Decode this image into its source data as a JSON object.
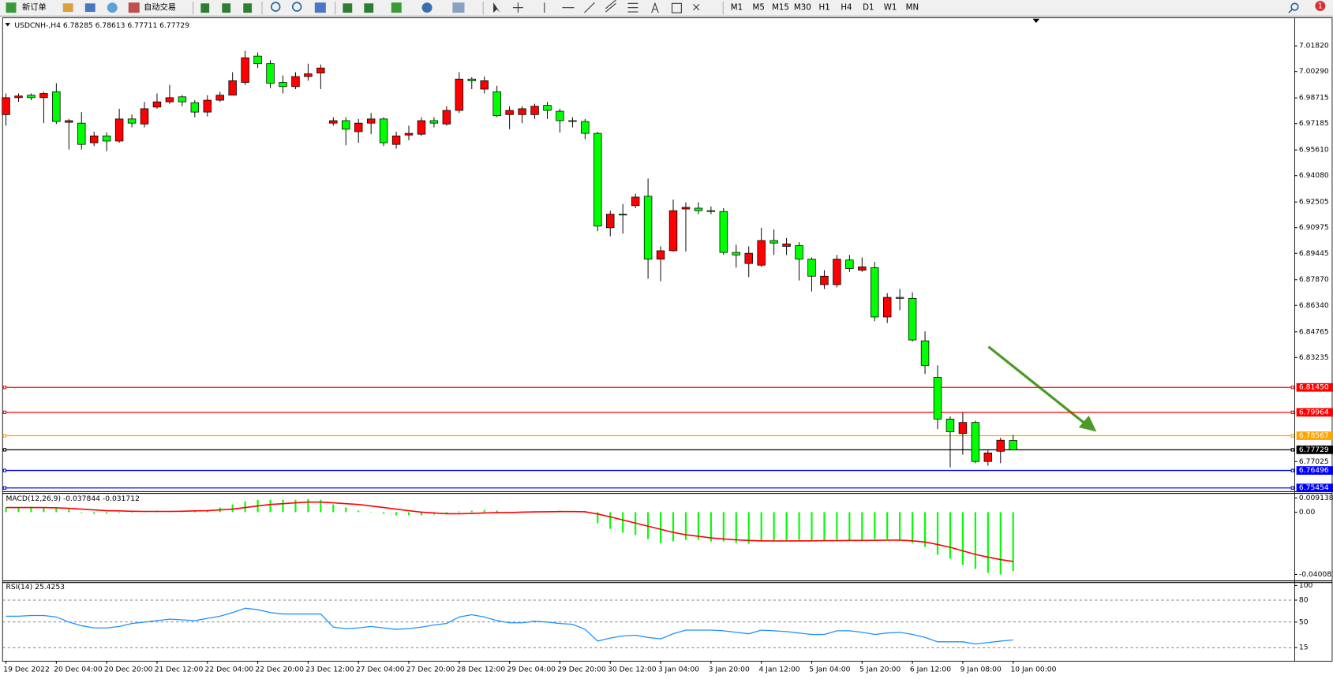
{
  "toolbar": {
    "new_order": "新订单",
    "auto_trading": "自动交易",
    "timeframes": [
      "M1",
      "M5",
      "M15",
      "M30",
      "H1",
      "H4",
      "D1",
      "W1",
      "MN"
    ],
    "alert_count": "1"
  },
  "chart_data": [
    {
      "type": "candlestick",
      "title": "USDCNH-,H4  6.78285 6.78613 6.77711 6.77729",
      "categories": [
        "19 Dec 2022",
        null,
        null,
        null,
        "20 Dec 04:00",
        null,
        null,
        null,
        "20 Dec 20:00",
        null,
        null,
        null,
        "21 Dec 12:00",
        null,
        null,
        null,
        "22 Dec 04:00",
        null,
        null,
        null,
        "22 Dec 20:00",
        null,
        null,
        null,
        "23 Dec 12:00",
        null,
        null,
        null,
        "27 Dec 04:00",
        null,
        null,
        null,
        "27 Dec 20:00",
        null,
        null,
        null,
        "28 Dec 12:00",
        null,
        null,
        null,
        "29 Dec 04:00",
        null,
        null,
        null,
        "29 Dec 20:00",
        null,
        null,
        null,
        "30 Dec 12:00",
        null,
        null,
        null,
        "3 Jan 04:00",
        null,
        null,
        null,
        "3 Jan 20:00",
        null,
        null,
        null,
        "4 Jan 12:00",
        null,
        null,
        null,
        "5 Jan 04:00",
        null,
        null,
        null,
        "5 Jan 20:00",
        null,
        null,
        null,
        "6 Jan 12:00",
        null,
        null,
        null,
        "9 Jan 08:00",
        null,
        null,
        null,
        "10 Jan 00:00"
      ],
      "open": [
        6.9772,
        6.9873,
        6.9888,
        6.9873,
        6.9908,
        6.9726,
        6.9721,
        6.9604,
        6.9645,
        6.9614,
        6.9746,
        6.9716,
        6.9817,
        6.9848,
        6.9878,
        6.9843,
        6.9787,
        6.9858,
        6.9888,
        6.9964,
        7.0121,
        7.0076,
        6.9964,
        6.9939,
        6.9999,
        7.002,
        6.9721,
        6.9736,
        6.967,
        6.9721,
        6.9746,
        6.9594,
        6.965,
        6.9655,
        6.9736,
        6.9716,
        6.9797,
        6.9984,
        6.9924,
        6.9908,
        6.9772,
        6.9772,
        6.9772,
        6.9827,
        6.9792,
        6.9736,
        6.9731,
        6.966,
        6.9097,
        6.9178,
        6.9229,
        6.9285,
        6.891,
        6.896,
        6.9209,
        6.9214,
        6.9199,
        6.9194,
        6.895,
        6.8884,
        6.8874,
        6.9021,
        6.8986,
        6.8991,
        6.891,
        6.8758,
        6.8758,
        6.8905,
        6.8844,
        6.8859,
        6.8565,
        6.8682,
        6.8676,
        6.8423,
        6.8205,
        6.7956,
        6.787,
        6.7936,
        6.7703,
        6.7764,
        6.78285
      ],
      "high": [
        6.9898,
        6.9898,
        6.9898,
        6.9908,
        6.9959,
        6.9746,
        6.9787,
        6.967,
        6.9665,
        6.9807,
        6.9772,
        6.9848,
        6.9898,
        6.9949,
        6.9888,
        6.9858,
        6.9888,
        6.9908,
        7.0025,
        7.0152,
        7.0142,
        7.0096,
        7.0005,
        7.0025,
        7.0076,
        7.0071,
        6.9756,
        6.9756,
        6.9746,
        6.9782,
        6.9756,
        6.967,
        6.9706,
        6.9756,
        6.9756,
        6.9822,
        7.0025,
        6.9995,
        6.9999,
        6.9944,
        6.9822,
        6.9822,
        6.9837,
        6.9848,
        6.9807,
        6.9756,
        6.9746,
        6.967,
        6.9199,
        6.9239,
        6.93,
        6.9391,
        6.8986,
        6.9265,
        6.9249,
        6.9249,
        6.9224,
        6.9214,
        6.8996,
        6.8986,
        6.9097,
        6.9087,
        6.9036,
        6.9011,
        6.892,
        6.8844,
        6.8935,
        6.8935,
        6.892,
        6.8894,
        6.8707,
        6.8732,
        6.8712,
        6.8479,
        6.8276,
        6.7972,
        6.7997,
        6.7946,
        6.7769,
        6.7845,
        6.78613
      ],
      "low": [
        6.9706,
        6.9848,
        6.9858,
        6.9721,
        6.9716,
        6.9564,
        6.9564,
        6.9584,
        6.9554,
        6.9604,
        6.9696,
        6.9696,
        6.9807,
        6.9837,
        6.9822,
        6.9756,
        6.9761,
        6.9848,
        6.9888,
        6.9949,
        7.005,
        6.9929,
        6.9898,
        6.9924,
        6.9974,
        6.9924,
        6.9706,
        6.9589,
        6.9604,
        6.9655,
        6.9584,
        6.9569,
        6.9619,
        6.9645,
        6.9696,
        6.9706,
        6.9782,
        6.9924,
        6.9898,
        6.9756,
        6.9685,
        6.9721,
        6.9746,
        6.9746,
        6.9665,
        6.9696,
        6.9625,
        6.9077,
        6.9046,
        6.9062,
        6.9214,
        6.8793,
        6.8778,
        6.8955,
        6.8955,
        6.9178,
        6.9178,
        6.8935,
        6.8859,
        6.8803,
        6.8864,
        6.8935,
        6.8935,
        6.8783,
        6.8717,
        6.8732,
        6.8742,
        6.8834,
        6.8834,
        6.854,
        6.8529,
        6.8605,
        6.8418,
        6.8225,
        6.7896,
        6.7668,
        6.7744,
        6.7693,
        6.7678,
        6.7693,
        6.77711
      ],
      "close": [
        6.9873,
        6.9883,
        6.9873,
        6.9898,
        6.9731,
        6.9736,
        6.9594,
        6.9645,
        6.9614,
        6.9746,
        6.9721,
        6.9807,
        6.9848,
        6.9873,
        6.9848,
        6.9787,
        6.9858,
        6.9888,
        6.9974,
        7.0111,
        7.0076,
        6.9959,
        6.9939,
        6.9999,
        7.0015,
        7.005,
        6.9736,
        6.9685,
        6.9721,
        6.9746,
        6.9604,
        6.9645,
        6.966,
        6.9736,
        6.9721,
        6.9797,
        6.9984,
        6.9974,
        6.9974,
        6.9766,
        6.9797,
        6.9807,
        6.9822,
        6.9797,
        6.9736,
        6.9731,
        6.966,
        6.9107,
        6.9178,
        6.9173,
        6.928,
        6.891,
        6.896,
        6.9199,
        6.9219,
        6.9199,
        6.9194,
        6.895,
        6.8935,
        6.8945,
        6.9021,
        6.9006,
        6.9001,
        6.891,
        6.8808,
        6.8808,
        6.891,
        6.8854,
        6.8864,
        6.8565,
        6.8682,
        6.8676,
        6.8428,
        6.8276,
        6.7956,
        6.788,
        6.7936,
        6.7703,
        6.7754,
        6.783,
        6.77729
      ],
      "up_color": "#ff0000",
      "down_color": "#00ff00",
      "ylim": [
        6.7526,
        7.0344
      ],
      "yticks": [
        {
          "value": 7.0182,
          "label": "7.01820"
        },
        {
          "value": 7.0029,
          "label": "7.00290"
        },
        6.98715,
        6.97185,
        {
          "value": 6.9561,
          "label": "6.95610"
        },
        {
          "value": 6.9408,
          "label": "6.94080"
        },
        6.92505,
        6.90975,
        6.89445,
        {
          "value": 6.8787,
          "label": "6.87870"
        },
        {
          "value": 6.8634,
          "label": "6.86340"
        },
        6.84765,
        6.83235,
        6.77025
      ],
      "hlines": [
        {
          "value": 6.8145,
          "label": "6.81450",
          "color": "#ff0000"
        },
        {
          "value": 6.79964,
          "label": "6.79964",
          "color": "#ff0000"
        },
        {
          "value": 6.78567,
          "label": "6.78567",
          "color": "#ffa500"
        },
        {
          "value": 6.77729,
          "label": "6.77729",
          "color": "#000000"
        },
        {
          "value": 6.76496,
          "label": "6.76496",
          "color": "#0000ff"
        },
        {
          "value": 6.75454,
          "label": "6.75454",
          "color": "#0000ff"
        }
      ]
    },
    {
      "type": "macd",
      "title": "MACD(12,26,9) -0.037844 -0.031712",
      "ylim": [
        -0.040081,
        0.009138
      ],
      "yticks": [
        0.009138,
        {
          "value": 0,
          "label": "0.00"
        },
        -0.040081
      ],
      "series": [
        {
          "type": "bar",
          "color": "#00ff00",
          "values": [
            0.003,
            0.003,
            0.0035,
            0.003,
            0.003,
            0.002,
            -0.0005,
            -0.001,
            -0.001,
            -0.0005,
            0,
            0.0005,
            0.001,
            0.0005,
            0.001,
            0.001,
            0.0015,
            0.003,
            0.005,
            0.007,
            0.008,
            0.008,
            0.008,
            0.008,
            0.0085,
            0.008,
            0.005,
            0.003,
            0.001,
            0,
            -0.001,
            -0.002,
            -0.002,
            -0.002,
            -0.0015,
            -0.001,
            0.0005,
            0.001,
            0.0015,
            0.001,
            0,
            0.0005,
            0.0005,
            0.0005,
            0.001,
            0.0005,
            0,
            -0.0071,
            -0.0107,
            -0.0132,
            -0.0147,
            -0.0173,
            -0.0198,
            -0.0188,
            -0.0178,
            -0.0178,
            -0.0188,
            -0.0188,
            -0.0198,
            -0.0203,
            -0.0188,
            -0.0188,
            -0.0183,
            -0.0178,
            -0.0183,
            -0.0183,
            -0.0178,
            -0.0178,
            -0.0178,
            -0.0173,
            -0.0173,
            -0.0178,
            -0.0198,
            -0.0223,
            -0.0274,
            -0.0299,
            -0.034,
            -0.0365,
            -0.039,
            -0.04,
            -0.037844
          ]
        },
        {
          "type": "line",
          "color": "#ff0000",
          "values": [
            0.003,
            0.003,
            0.003,
            0.003,
            0.0028,
            0.0025,
            0.002,
            0.0015,
            0.001,
            0.0008,
            0.0006,
            0.0005,
            0.0005,
            0.0005,
            0.0006,
            0.0008,
            0.001,
            0.0015,
            0.002,
            0.003,
            0.004,
            0.005,
            0.0055,
            0.006,
            0.0065,
            0.0065,
            0.006,
            0.0055,
            0.005,
            0.004,
            0.003,
            0.002,
            0.001,
            0,
            -0.0005,
            -0.001,
            -0.001,
            -0.0008,
            -0.0005,
            -0.0003,
            -0.0002,
            0,
            0.0002,
            0.0003,
            0.0004,
            0.0004,
            0.0003,
            -0.0012,
            -0.003,
            -0.005,
            -0.007,
            -0.009,
            -0.011,
            -0.013,
            -0.0145,
            -0.0155,
            -0.0165,
            -0.0172,
            -0.0178,
            -0.0182,
            -0.0184,
            -0.0185,
            -0.0185,
            -0.0184,
            -0.0184,
            -0.0183,
            -0.0183,
            -0.0182,
            -0.0182,
            -0.0181,
            -0.018,
            -0.018,
            -0.0184,
            -0.0192,
            -0.0208,
            -0.0226,
            -0.0249,
            -0.0272,
            -0.0289,
            -0.0305,
            -0.031712
          ]
        }
      ]
    },
    {
      "type": "line",
      "title": "RSI(14) 25.4253",
      "ylim": [
        0,
        100
      ],
      "yticks": [
        100,
        80,
        50,
        15
      ],
      "series": [
        {
          "color": "#1e90ff",
          "values": [
            58,
            58,
            59,
            59,
            57,
            50,
            45,
            42,
            42,
            44,
            48,
            50,
            52,
            54,
            53,
            52,
            55,
            58,
            63,
            69,
            67,
            63,
            61,
            61,
            61,
            61,
            43,
            41,
            42,
            44,
            42,
            40,
            41,
            43,
            46,
            48,
            57,
            60,
            57,
            52,
            49,
            49,
            51,
            50,
            48,
            47,
            40,
            24,
            28,
            31,
            32,
            29,
            27,
            34,
            39,
            39,
            39,
            38,
            36,
            34,
            39,
            38,
            37,
            35,
            33,
            33,
            38,
            38,
            36,
            33,
            35,
            36,
            33,
            29,
            23,
            23,
            23,
            20,
            22,
            24,
            25.4253
          ]
        }
      ]
    }
  ]
}
